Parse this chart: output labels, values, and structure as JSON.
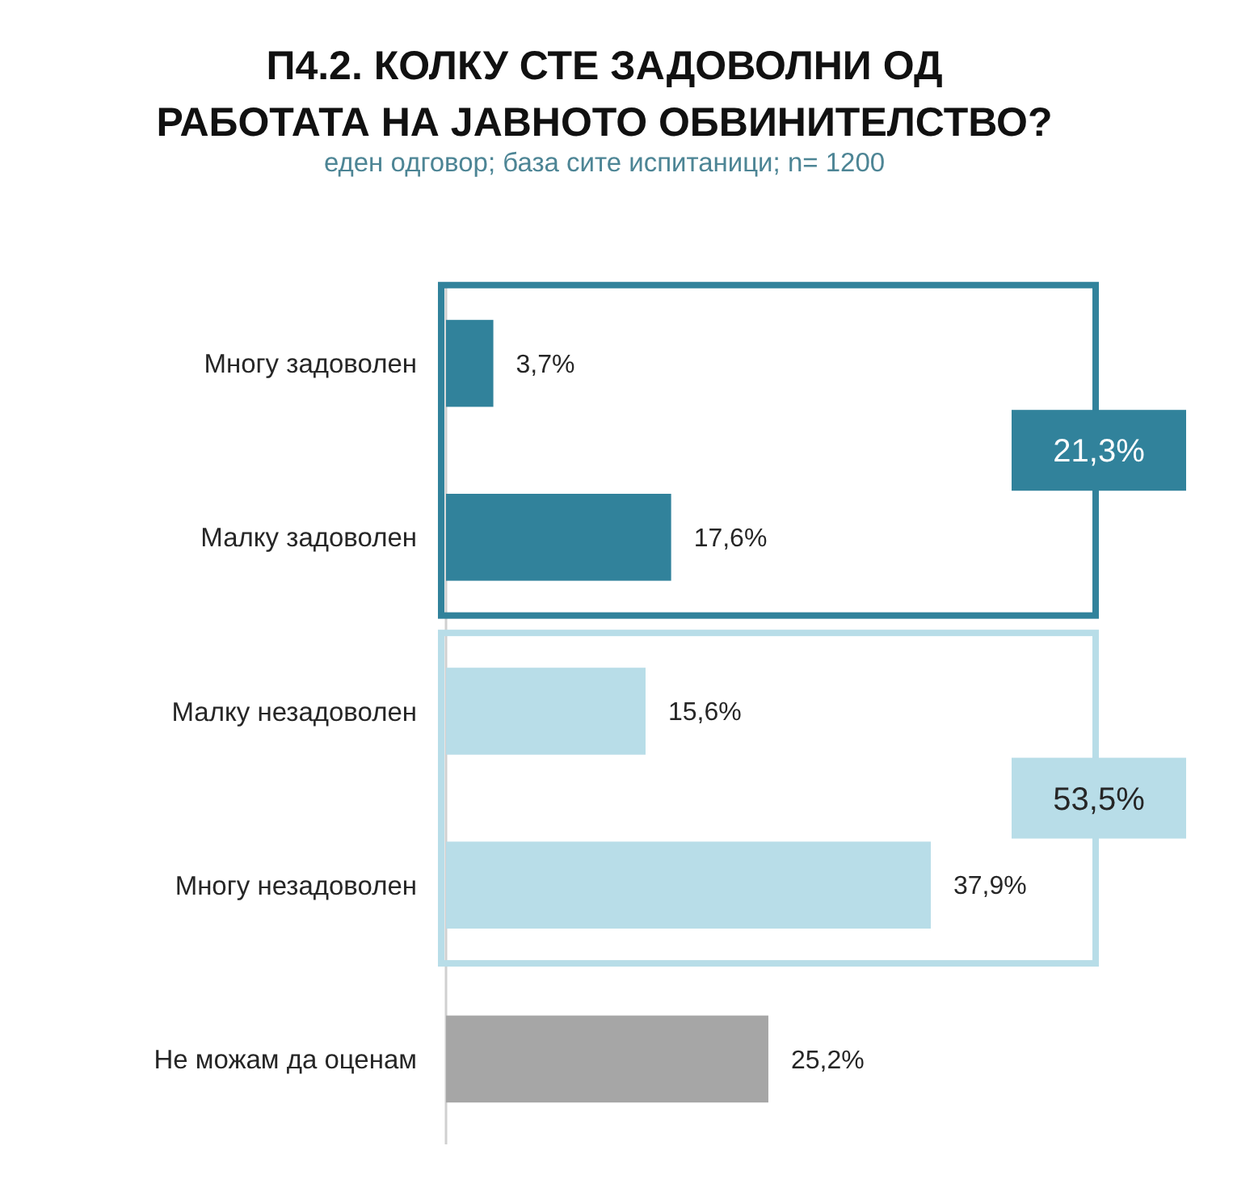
{
  "chart_data": {
    "type": "bar",
    "orientation": "horizontal",
    "title": "П4.2. КОЛКУ СТЕ ЗАДОВОЛНИ ОД РАБОТАТА НА ЈАВНОТО ОБВИНИТЕЛСТВО?",
    "subtitle": "еден одговор; база сите испитаници; n= 1200",
    "categories": [
      "Многу задоволен",
      "Малку задоволен",
      "Малку незадоволен",
      "Многу незадоволен",
      "Не можам да оценам"
    ],
    "values": [
      3.7,
      17.6,
      15.6,
      37.9,
      25.2
    ],
    "colors": [
      "#31829b",
      "#31829b",
      "#b8dde8",
      "#b8dde8",
      "#a6a6a6"
    ],
    "value_labels": [
      "3,7%",
      "17,6%",
      "15,6%",
      "37,9%",
      "25,2%"
    ],
    "annotations": [
      "21,3%",
      "53,5%"
    ],
    "tick_labels": "y"
  }
}
